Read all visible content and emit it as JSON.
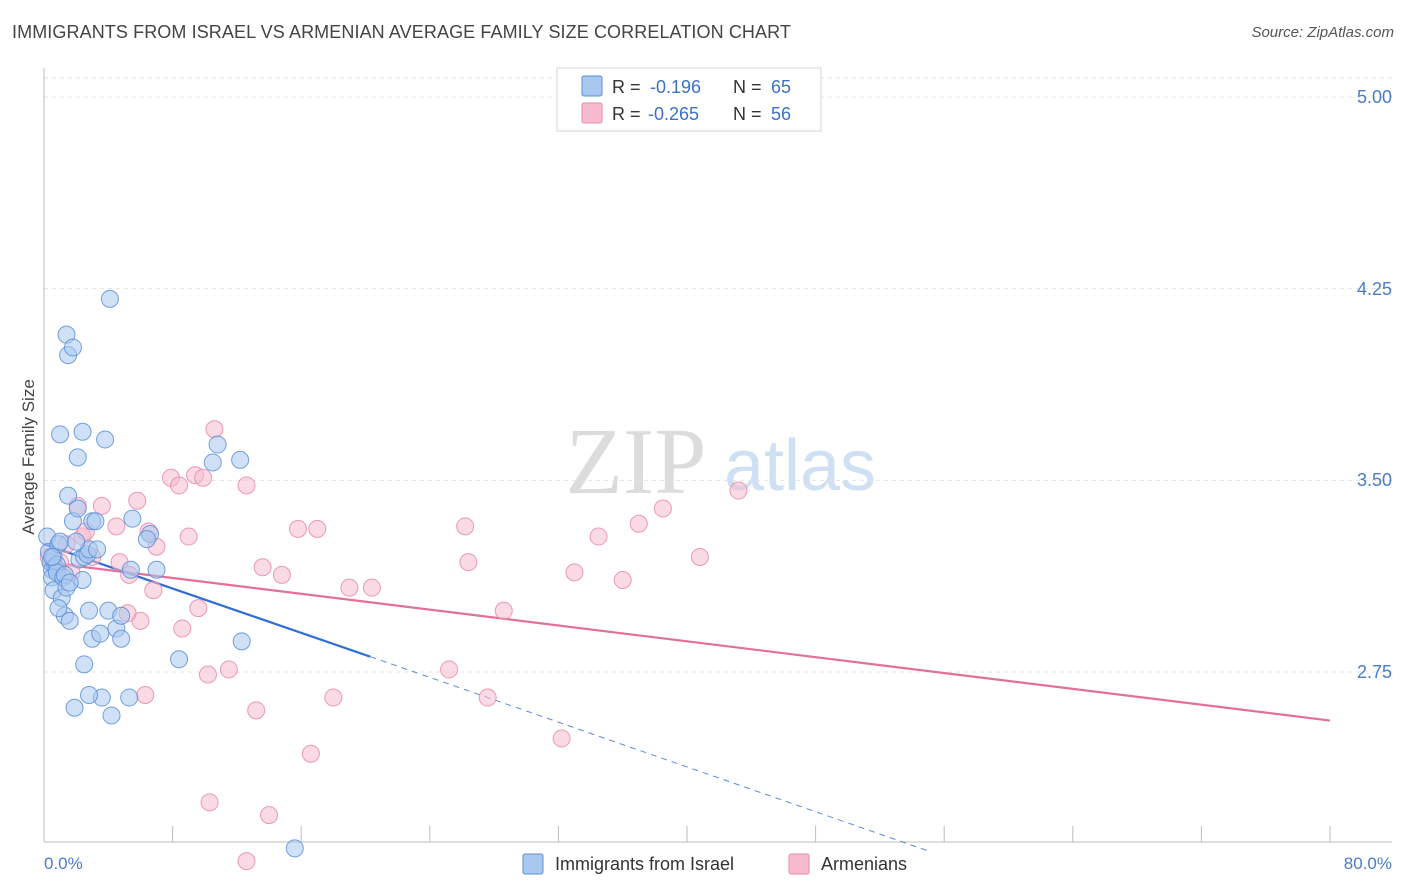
{
  "header": {
    "title": "IMMIGRANTS FROM ISRAEL VS ARMENIAN AVERAGE FAMILY SIZE CORRELATION CHART",
    "source": "Source: ZipAtlas.com"
  },
  "watermark": {
    "zip": "ZIP",
    "atlas": "atlas"
  },
  "legend": {
    "rows": [
      {
        "r_label": "R =",
        "r_value": "-0.196",
        "n_label": "N =",
        "n_value": "65"
      },
      {
        "r_label": "R =",
        "r_value": "-0.265",
        "n_label": "N =",
        "n_value": "56"
      }
    ]
  },
  "colors": {
    "blue_fill": "#a9c8f0",
    "blue_stroke": "#5b8fd6",
    "blue_line": "#2f6fd6",
    "pink_fill": "#f6bccd",
    "pink_stroke": "#e98aa8",
    "pink_line": "#e2709a",
    "axis_value_color": "#4a7cc9",
    "grid": "#e3e3e3"
  },
  "chart_data": {
    "type": "scatter",
    "title": "IMMIGRANTS FROM ISRAEL VS ARMENIAN AVERAGE FAMILY SIZE CORRELATION CHART",
    "xlabel": "",
    "ylabel": "Average Family Size",
    "xlim": [
      0,
      80
    ],
    "ylim": [
      2.0,
      5.1
    ],
    "x_tick_labels": [
      "0.0%",
      "80.0%"
    ],
    "y_ticks": [
      5.0,
      4.25,
      3.5,
      2.75
    ],
    "y_tick_labels": [
      "5.00",
      "4.25",
      "3.50",
      "2.75"
    ],
    "grid": true,
    "legend_position": "top-center",
    "bottom_legend": [
      "Immigrants from Israel",
      "Armenians"
    ],
    "series": [
      {
        "name": "Immigrants from Israel",
        "color": "#a9c8f0",
        "points": [
          [
            0.2,
            3.28
          ],
          [
            0.3,
            3.22
          ],
          [
            0.4,
            3.18
          ],
          [
            0.5,
            3.15
          ],
          [
            0.6,
            3.2
          ],
          [
            0.7,
            3.16
          ],
          [
            0.8,
            3.17
          ],
          [
            0.5,
            3.12
          ],
          [
            0.6,
            3.07
          ],
          [
            0.9,
            3.25
          ],
          [
            1.0,
            3.26
          ],
          [
            0.8,
            3.14
          ],
          [
            1.2,
            3.12
          ],
          [
            1.3,
            3.13
          ],
          [
            1.1,
            3.04
          ],
          [
            1.4,
            3.08
          ],
          [
            1.3,
            2.97
          ],
          [
            1.6,
            2.95
          ],
          [
            1.5,
            3.44
          ],
          [
            1.8,
            3.34
          ],
          [
            2.1,
            3.39
          ],
          [
            2.2,
            3.19
          ],
          [
            2.4,
            3.11
          ],
          [
            2.5,
            3.2
          ],
          [
            2.7,
            3.21
          ],
          [
            2.8,
            3.23
          ],
          [
            3.0,
            3.34
          ],
          [
            3.2,
            3.34
          ],
          [
            1.0,
            3.68
          ],
          [
            2.4,
            3.69
          ],
          [
            1.4,
            4.07
          ],
          [
            1.5,
            3.99
          ],
          [
            1.8,
            4.02
          ],
          [
            2.1,
            3.59
          ],
          [
            3.8,
            3.66
          ],
          [
            4.1,
            4.21
          ],
          [
            2.8,
            2.99
          ],
          [
            3.0,
            2.88
          ],
          [
            3.5,
            2.9
          ],
          [
            3.6,
            2.65
          ],
          [
            4.0,
            2.99
          ],
          [
            4.5,
            2.92
          ],
          [
            4.8,
            2.88
          ],
          [
            5.3,
            2.65
          ],
          [
            2.5,
            2.78
          ],
          [
            1.9,
            2.61
          ],
          [
            2.8,
            2.66
          ],
          [
            4.2,
            2.58
          ],
          [
            4.8,
            2.97
          ],
          [
            5.4,
            3.15
          ],
          [
            5.5,
            3.35
          ],
          [
            6.6,
            3.29
          ],
          [
            7.0,
            3.15
          ],
          [
            10.5,
            3.57
          ],
          [
            10.8,
            3.64
          ],
          [
            12.2,
            3.58
          ],
          [
            8.4,
            2.8
          ],
          [
            12.3,
            2.87
          ],
          [
            15.6,
            2.06
          ],
          [
            6.4,
            3.27
          ],
          [
            3.3,
            3.23
          ],
          [
            0.5,
            3.2
          ],
          [
            1.6,
            3.1
          ],
          [
            0.9,
            3.0
          ],
          [
            2.0,
            3.26
          ]
        ]
      },
      {
        "name": "Armenians",
        "color": "#f6bccd",
        "points": [
          [
            0.3,
            3.2
          ],
          [
            0.8,
            3.15
          ],
          [
            1.0,
            3.18
          ],
          [
            1.4,
            3.25
          ],
          [
            1.7,
            3.14
          ],
          [
            2.1,
            3.4
          ],
          [
            2.4,
            3.28
          ],
          [
            2.6,
            3.3
          ],
          [
            3.0,
            3.2
          ],
          [
            3.6,
            3.4
          ],
          [
            4.5,
            3.32
          ],
          [
            4.7,
            3.18
          ],
          [
            5.3,
            3.13
          ],
          [
            5.8,
            3.42
          ],
          [
            6.5,
            3.3
          ],
          [
            7.0,
            3.24
          ],
          [
            6.8,
            3.07
          ],
          [
            6.0,
            2.95
          ],
          [
            5.2,
            2.98
          ],
          [
            6.3,
            2.66
          ],
          [
            7.9,
            3.51
          ],
          [
            8.4,
            3.48
          ],
          [
            8.6,
            2.92
          ],
          [
            9.0,
            3.28
          ],
          [
            9.4,
            3.52
          ],
          [
            9.6,
            3.0
          ],
          [
            9.9,
            3.51
          ],
          [
            10.2,
            2.74
          ],
          [
            10.6,
            3.7
          ],
          [
            11.5,
            2.76
          ],
          [
            12.6,
            3.48
          ],
          [
            13.2,
            2.6
          ],
          [
            13.6,
            3.16
          ],
          [
            14.0,
            2.19
          ],
          [
            14.8,
            3.13
          ],
          [
            15.8,
            3.31
          ],
          [
            16.6,
            2.43
          ],
          [
            17.0,
            3.31
          ],
          [
            18.0,
            2.65
          ],
          [
            19.0,
            3.08
          ],
          [
            12.6,
            2.01
          ],
          [
            10.3,
            2.24
          ],
          [
            20.4,
            3.08
          ],
          [
            25.2,
            2.76
          ],
          [
            26.2,
            3.32
          ],
          [
            26.4,
            3.18
          ],
          [
            27.6,
            2.65
          ],
          [
            28.6,
            2.99
          ],
          [
            32.2,
            2.49
          ],
          [
            33.0,
            3.14
          ],
          [
            34.5,
            3.28
          ],
          [
            36.0,
            3.11
          ],
          [
            37.0,
            3.33
          ],
          [
            38.5,
            3.39
          ],
          [
            40.8,
            3.2
          ],
          [
            43.2,
            3.46
          ]
        ]
      }
    ],
    "trendlines": [
      {
        "series": "Immigrants from Israel",
        "solid": [
          [
            0,
            3.25
          ],
          [
            20.3,
            2.81
          ]
        ],
        "dashed": [
          [
            20.3,
            2.81
          ],
          [
            55,
            2.05
          ]
        ]
      },
      {
        "series": "Armenians",
        "solid": [
          [
            0,
            3.18
          ],
          [
            80,
            2.56
          ]
        ]
      }
    ]
  }
}
